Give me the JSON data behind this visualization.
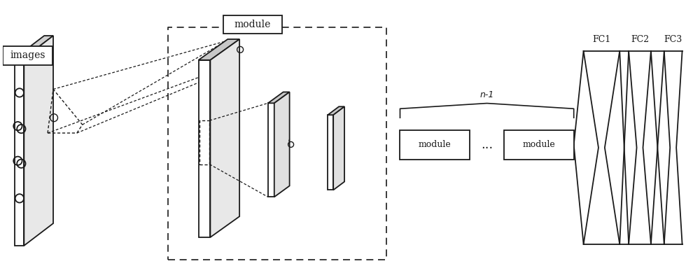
{
  "bg_color": "#ffffff",
  "text_color": "#1a1a1a",
  "line_color": "#1a1a1a",
  "images_label": "images",
  "module_label": "module",
  "n1_label": "n-1",
  "dots_label": "...",
  "fc_labels": [
    "FC1",
    "FC2",
    "FC3"
  ],
  "figsize": [
    10.0,
    3.9
  ],
  "dpi": 100
}
